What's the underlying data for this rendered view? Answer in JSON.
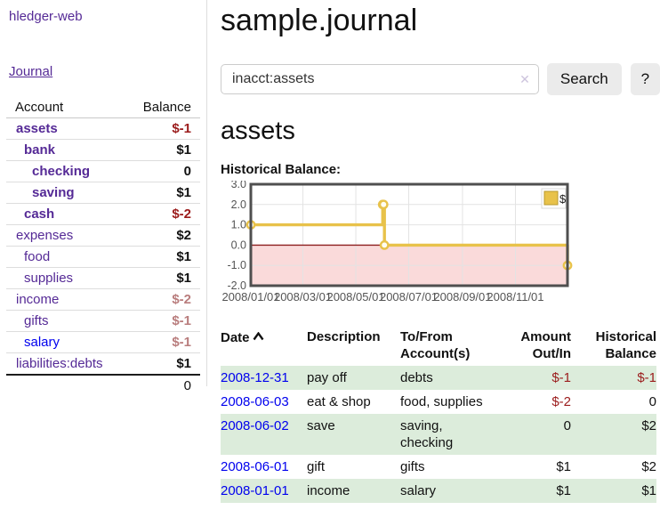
{
  "colors": {
    "link_purple": "#552a96",
    "link_blue": "#0000ee",
    "negative_strong": "#9b1c1c",
    "negative_muted": "#b97d7d",
    "row_shade_green": "#dcecdb",
    "button_bg": "#ebebeb",
    "chart_line_gold": "#e8c24a",
    "chart_negative_fill": "#fadada",
    "chart_zero_line": "#8e1f1f",
    "chart_frame": "#4f4f4f",
    "chart_grid": "#e3e3e3",
    "chart_tick_text": "#545454"
  },
  "sidebar": {
    "brand": "hledger-web",
    "journal_link": "Journal",
    "table": {
      "account_header": "Account",
      "balance_header": "Balance",
      "rows": [
        {
          "account": "assets",
          "depth": 1,
          "bold": true,
          "link": "purple",
          "balance": "$-1",
          "balance_class": "neg"
        },
        {
          "account": "bank",
          "depth": 2,
          "bold": true,
          "link": "purple",
          "balance": "$1",
          "balance_class": "pos"
        },
        {
          "account": "checking",
          "depth": 3,
          "bold": true,
          "link": "purple",
          "balance": "0",
          "balance_class": "pos"
        },
        {
          "account": "saving",
          "depth": 3,
          "bold": true,
          "link": "purple",
          "balance": "$1",
          "balance_class": "pos"
        },
        {
          "account": "cash",
          "depth": 2,
          "bold": true,
          "link": "purple",
          "balance": "$-2",
          "balance_class": "neg"
        },
        {
          "account": "expenses",
          "depth": 1,
          "bold": false,
          "link": "purple",
          "balance": "$2",
          "balance_class": "pos"
        },
        {
          "account": "food",
          "depth": 2,
          "bold": false,
          "link": "purple",
          "balance": "$1",
          "balance_class": "pos"
        },
        {
          "account": "supplies",
          "depth": 2,
          "bold": false,
          "link": "purple",
          "balance": "$1",
          "balance_class": "pos"
        },
        {
          "account": "income",
          "depth": 1,
          "bold": false,
          "link": "purple",
          "balance": "$-2",
          "balance_class": "negmuted"
        },
        {
          "account": "gifts",
          "depth": 2,
          "bold": false,
          "link": "purple",
          "balance": "$-1",
          "balance_class": "negmuted"
        },
        {
          "account": "salary",
          "depth": 2,
          "bold": false,
          "link": "blue",
          "balance": "$-1",
          "balance_class": "negmuted"
        },
        {
          "account": "liabilities:debts",
          "depth": 1,
          "bold": false,
          "link": "purple",
          "balance": "$1",
          "balance_class": "pos"
        }
      ],
      "total": "0"
    }
  },
  "main": {
    "title": "sample.journal",
    "search": {
      "value": "inacct:assets",
      "clear_glyph": "✕",
      "search_button": "Search",
      "help_button": "?"
    },
    "account_heading": "assets",
    "chart_title": "Historical Balance:",
    "register": {
      "headers": {
        "date": "Date",
        "description": "Description",
        "accounts": "To/From Account(s)",
        "amount": "Amount Out/In",
        "balance": "Historical Balance"
      },
      "rows": [
        {
          "date": "2008-12-31",
          "description": "pay off",
          "accounts": "debts",
          "amount": "$-1",
          "amount_neg": true,
          "balance": "$-1",
          "balance_neg": true,
          "shaded": true
        },
        {
          "date": "2008-06-03",
          "description": "eat & shop",
          "accounts": "food, supplies",
          "amount": "$-2",
          "amount_neg": true,
          "balance": "0",
          "balance_neg": false,
          "shaded": false
        },
        {
          "date": "2008-06-02",
          "description": "save",
          "accounts": "saving, checking",
          "amount": "0",
          "amount_neg": false,
          "balance": "$2",
          "balance_neg": false,
          "shaded": true
        },
        {
          "date": "2008-06-01",
          "description": "gift",
          "accounts": "gifts",
          "amount": "$1",
          "amount_neg": false,
          "balance": "$2",
          "balance_neg": false,
          "shaded": false
        },
        {
          "date": "2008-01-01",
          "description": "income",
          "accounts": "salary",
          "amount": "$1",
          "amount_neg": false,
          "balance": "$1",
          "balance_neg": false,
          "shaded": true
        }
      ]
    }
  },
  "chart_data": {
    "type": "line",
    "step": true,
    "title": "Historical Balance:",
    "ylim": [
      -2,
      3
    ],
    "yticks": [
      3,
      2,
      1,
      0,
      -1,
      -2
    ],
    "ytick_labels": [
      "3.0",
      "2.0",
      "1.0",
      "0.0",
      "-1.0",
      "-2.0"
    ],
    "xtick_labels": [
      "2008/01/01",
      "2008/03/01",
      "2008/05/01",
      "2008/07/01",
      "2008/09/01",
      "2008/11/01"
    ],
    "xtick_days": [
      0,
      60,
      121,
      182,
      244,
      305
    ],
    "xlim_days": [
      0,
      365
    ],
    "grid": true,
    "negative_region_shaded": true,
    "legend": {
      "label": "$",
      "position": "top-right"
    },
    "series": [
      {
        "name": "$",
        "points": [
          [
            "2008-01-01",
            1
          ],
          [
            "2008-06-01",
            2
          ],
          [
            "2008-06-02",
            2
          ],
          [
            "2008-06-03",
            0
          ],
          [
            "2008-12-31",
            -1
          ]
        ],
        "points_days": [
          [
            0,
            1
          ],
          [
            152,
            2
          ],
          [
            153,
            2
          ],
          [
            154,
            0
          ],
          [
            365,
            -1
          ]
        ]
      }
    ]
  }
}
